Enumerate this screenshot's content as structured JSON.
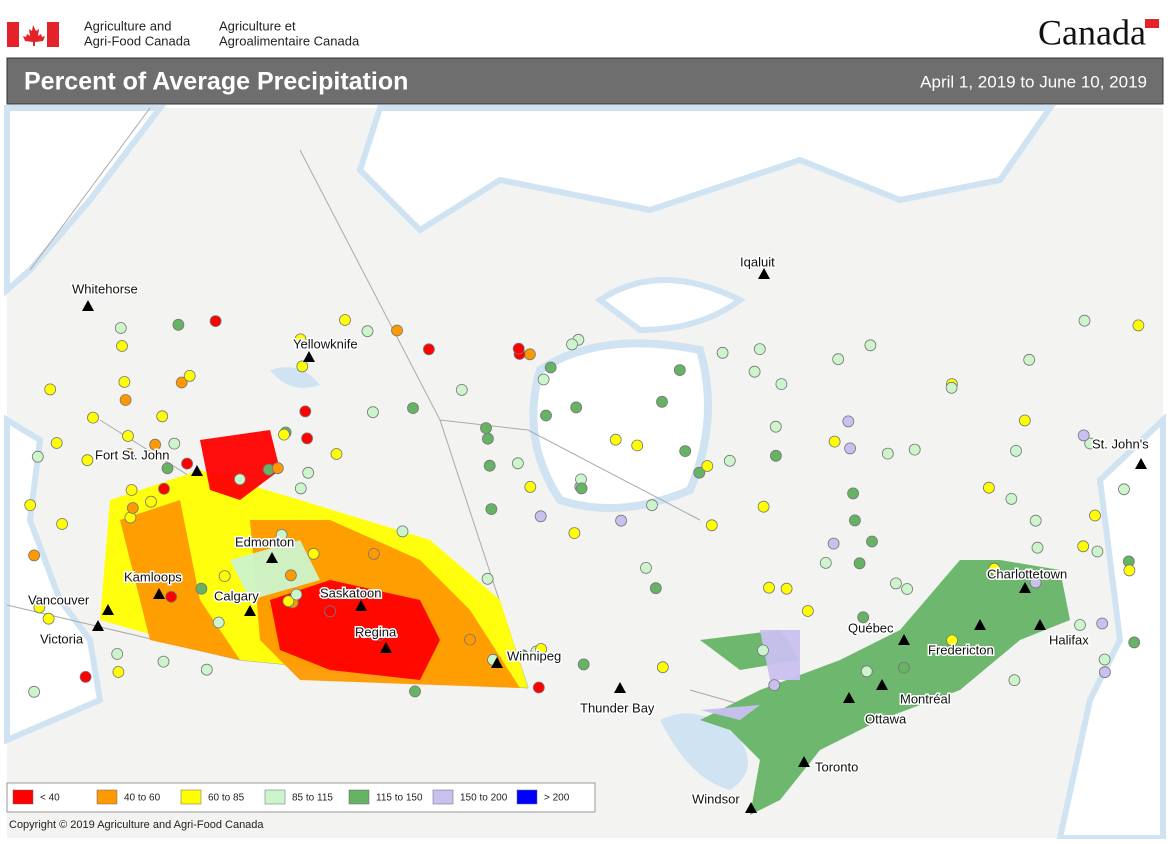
{
  "header": {
    "agency_en_line1": "Agriculture and",
    "agency_en_line2": "Agri-Food Canada",
    "agency_fr_line1": "Agriculture et",
    "agency_fr_line2": "Agroalimentaire Canada",
    "wordmark": "Canada"
  },
  "title": "Percent of Average Precipitation",
  "date_range": "April 1, 2019 to June 10, 2019",
  "cities": [
    "Whitehorse",
    "Yellowknife",
    "Iqaluit",
    "Fort St. John",
    "St. John's",
    "Edmonton",
    "Kamloops",
    "Vancouver",
    "Victoria",
    "Calgary",
    "Saskatoon",
    "Regina",
    "Winnipeg",
    "Thunder Bay",
    "Charlottetown",
    "Québec",
    "Halifax",
    "Fredericton",
    "Montréal",
    "Ottawa",
    "Toronto",
    "Windsor"
  ],
  "legend": [
    {
      "label": "< 40",
      "color": "#ff0000"
    },
    {
      "label": "40 to 60",
      "color": "#ff9900"
    },
    {
      "label": "60 to 85",
      "color": "#ffff00"
    },
    {
      "label": "85 to 115",
      "color": "#ccf5cc"
    },
    {
      "label": "115 to 150",
      "color": "#66b366"
    },
    {
      "label": "150 to 200",
      "color": "#c9c0f0"
    },
    {
      "label": "> 200",
      "color": "#0000ff"
    }
  ],
  "copyright": "Copyright © 2019 Agriculture and Agri-Food Canada"
}
